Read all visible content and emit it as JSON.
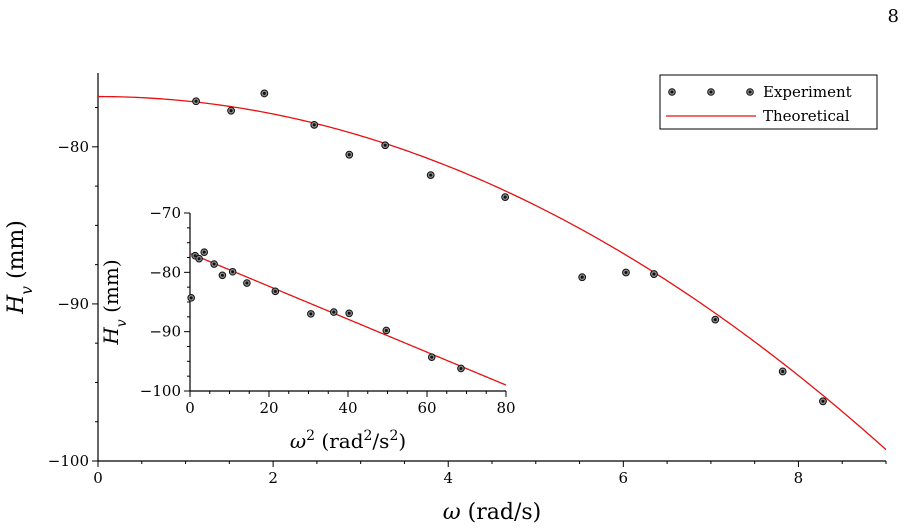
{
  "page": {
    "number": "8"
  },
  "chart_data": [
    {
      "type": "scatter",
      "title": "",
      "xlabel": "ω (rad/s)",
      "ylabel": "H_v (mm)",
      "xlim": [
        0,
        9
      ],
      "ylim": [
        -100,
        -75.3
      ],
      "x_ticks": [
        0,
        2,
        4,
        6,
        8
      ],
      "y_ticks": [
        -100,
        -90,
        -80
      ],
      "grid": false,
      "legend": {
        "position": "top-right",
        "entries": [
          {
            "label": "Experiment",
            "marker": "dot-row"
          },
          {
            "label": "Theoretical",
            "marker": "line"
          }
        ]
      },
      "series": [
        {
          "name": "Experiment",
          "type": "scatter",
          "color": "#000000",
          "points": [
            [
              1.12,
              -77.1
            ],
            [
              1.52,
              -77.7
            ],
            [
              1.9,
              -76.6
            ],
            [
              2.47,
              -78.6
            ],
            [
              2.87,
              -80.5
            ],
            [
              3.28,
              -79.9
            ],
            [
              3.8,
              -81.8
            ],
            [
              4.65,
              -83.2
            ],
            [
              5.53,
              -88.3
            ],
            [
              6.03,
              -88.0
            ],
            [
              6.35,
              -88.1
            ],
            [
              7.05,
              -91.0
            ],
            [
              7.82,
              -94.3
            ],
            [
              8.28,
              -96.2
            ]
          ]
        },
        {
          "name": "Theoretical",
          "type": "line",
          "color": "#e81010",
          "model": "quadratic",
          "a0": -76.8,
          "a2": -0.2775,
          "x_range": [
            0,
            9
          ]
        }
      ]
    },
    {
      "type": "scatter",
      "title": "",
      "xlabel": "ω² (rad²/s²)",
      "ylabel": "H_v (mm)",
      "xlim": [
        0,
        80
      ],
      "ylim": [
        -100,
        -70
      ],
      "x_ticks": [
        0,
        20,
        40,
        60,
        80
      ],
      "y_ticks": [
        -100,
        -90,
        -80,
        -70
      ],
      "grid": false,
      "series": [
        {
          "name": "Experiment",
          "type": "scatter",
          "color": "#000000",
          "points": [
            [
              0.3,
              -84.3
            ],
            [
              1.3,
              -77.2
            ],
            [
              2.3,
              -77.7
            ],
            [
              3.6,
              -76.6
            ],
            [
              6.1,
              -78.6
            ],
            [
              8.2,
              -80.5
            ],
            [
              10.8,
              -79.9
            ],
            [
              14.4,
              -81.8
            ],
            [
              21.6,
              -83.2
            ],
            [
              30.6,
              -87.0
            ],
            [
              36.4,
              -86.7
            ],
            [
              40.3,
              -86.9
            ],
            [
              49.7,
              -89.8
            ],
            [
              61.2,
              -94.3
            ],
            [
              68.6,
              -96.2
            ]
          ]
        },
        {
          "name": "Theoretical",
          "type": "line",
          "color": "#e81010",
          "model": "linear",
          "intercept": -76.8,
          "slope": -0.2775,
          "x_range": [
            0,
            80
          ]
        }
      ]
    }
  ]
}
